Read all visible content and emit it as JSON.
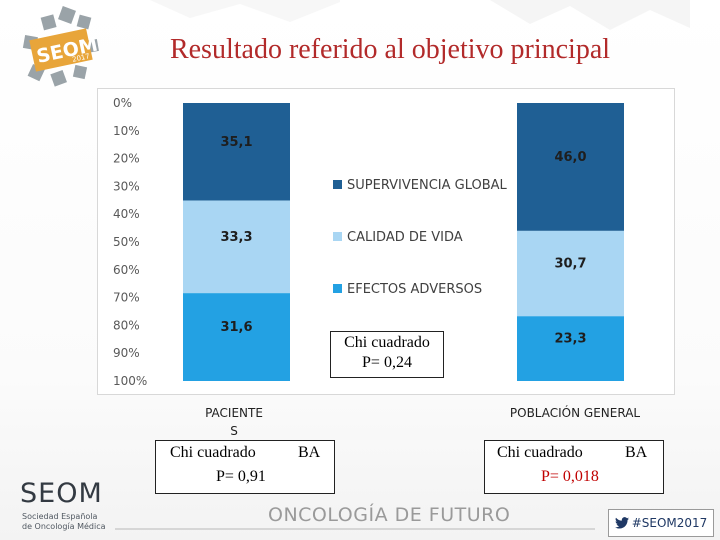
{
  "slide": {
    "title": "Resultado referido al objetivo principal",
    "footer_motto": "ONCOLOGÍA DE FUTURO",
    "hashtag": "#SEOM2017",
    "logo_top": "SEOM 2017",
    "logo_bottom": {
      "word": "SEOM",
      "sub_line1": "Sociedad Española",
      "sub_line2": "de Oncología Médica"
    }
  },
  "chart_data": {
    "type": "bar",
    "stacked": true,
    "title": "",
    "xlabel": "",
    "ylabel": "",
    "ylim": [
      0,
      100
    ],
    "y_inverted": true,
    "y_tick_labels": [
      "0%",
      "10%",
      "20%",
      "30%",
      "40%",
      "50%",
      "60%",
      "70%",
      "80%",
      "90%",
      "100%"
    ],
    "categories": [
      "PACIENTE S",
      "POBLACIÓN GENERAL"
    ],
    "series": [
      {
        "name": "SUPERVIVENCIA GLOBAL",
        "values": [
          35.1,
          46.0
        ],
        "labels": [
          "35,1",
          "46,0"
        ],
        "color": "#1f5f94"
      },
      {
        "name": "CALIDAD DE VIDA",
        "values": [
          33.3,
          30.7
        ],
        "labels": [
          "33,3",
          "30,7"
        ],
        "color": "#a9d6f3"
      },
      {
        "name": "EFECTOS ADVERSOS",
        "values": [
          31.6,
          23.3
        ],
        "labels": [
          "31,6",
          "23,3"
        ],
        "color": "#23a1e3"
      }
    ],
    "legend": {
      "position": "center"
    },
    "grid": false
  },
  "category_labels": {
    "left_line1": "PACIENTE",
    "left_line2": "S",
    "right": "POBLACIÓN GENERAL"
  },
  "annotations": {
    "center": {
      "line1": "Chi cuadrado",
      "line2": "P= 0,24"
    },
    "left": {
      "line1": "Chi cuadrado",
      "ba": "BA",
      "line2": "P= 0,91"
    },
    "right": {
      "line1": "Chi cuadrado",
      "ba": "BA",
      "line2": "P= 0,018"
    }
  }
}
